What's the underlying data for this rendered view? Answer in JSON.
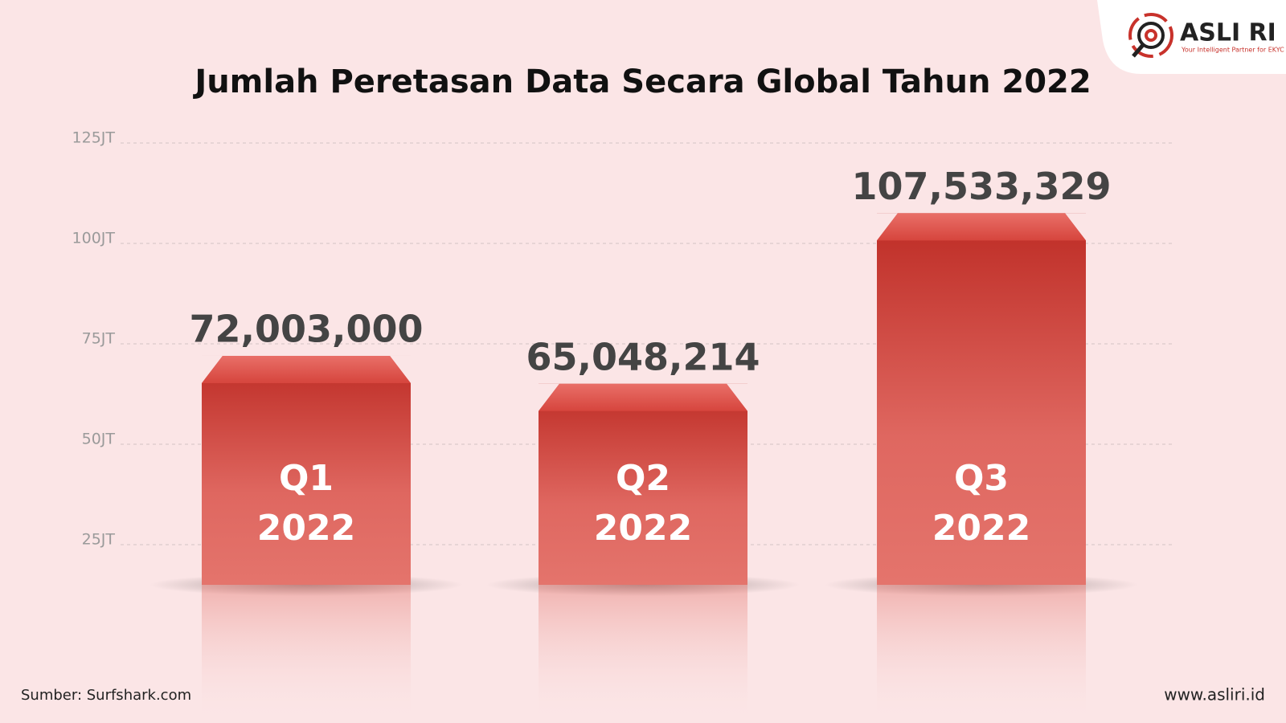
{
  "chart_data": {
    "type": "bar",
    "title": "Jumlah Peretasan Data Secara Global Tahun 2022",
    "categories": [
      [
        "Q1",
        "2022"
      ],
      [
        "Q2",
        "2022"
      ],
      [
        "Q3",
        "2022"
      ]
    ],
    "values": [
      72003000,
      65048214,
      107533329
    ],
    "value_labels": [
      "72,003,000",
      "65,048,214",
      "107,533,329"
    ],
    "ylim": [
      15000000,
      125000000
    ],
    "yticks": [
      {
        "value": 25000000,
        "label": "25JT"
      },
      {
        "value": 50000000,
        "label": "50JT"
      },
      {
        "value": 75000000,
        "label": "75JT"
      },
      {
        "value": 100000000,
        "label": "100JT"
      },
      {
        "value": 125000000,
        "label": "125JT"
      }
    ],
    "grid": true,
    "color": "#c8322b",
    "source": "Sumber: Surfshark.com",
    "website": "www.asliri.id",
    "logo": {
      "name": "ASLI RI",
      "tagline": "Your Intelligent Partner for EKYC"
    }
  }
}
